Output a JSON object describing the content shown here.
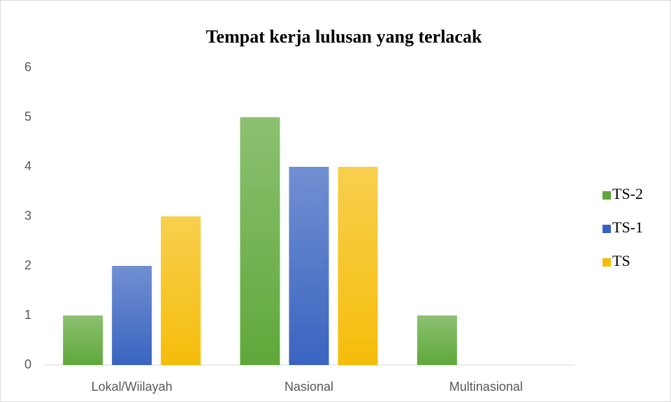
{
  "chart_data": {
    "type": "bar",
    "title": "Tempat kerja lulusan yang terlacak",
    "categories": [
      "Lokal/Wiilayah",
      "Nasional",
      "Multinasional"
    ],
    "series": [
      {
        "name": "TS-2",
        "color": "#5fa83a",
        "values": [
          1,
          5,
          1
        ]
      },
      {
        "name": "TS-1",
        "color": "#3a64c0",
        "values": [
          2,
          4,
          0
        ]
      },
      {
        "name": "TS",
        "color": "#f5bd0a",
        "values": [
          3,
          4,
          0
        ]
      }
    ],
    "ylim": [
      0,
      6
    ],
    "yticks": [
      0,
      1,
      2,
      3,
      4,
      5,
      6
    ],
    "grid": false,
    "legend": "right"
  }
}
